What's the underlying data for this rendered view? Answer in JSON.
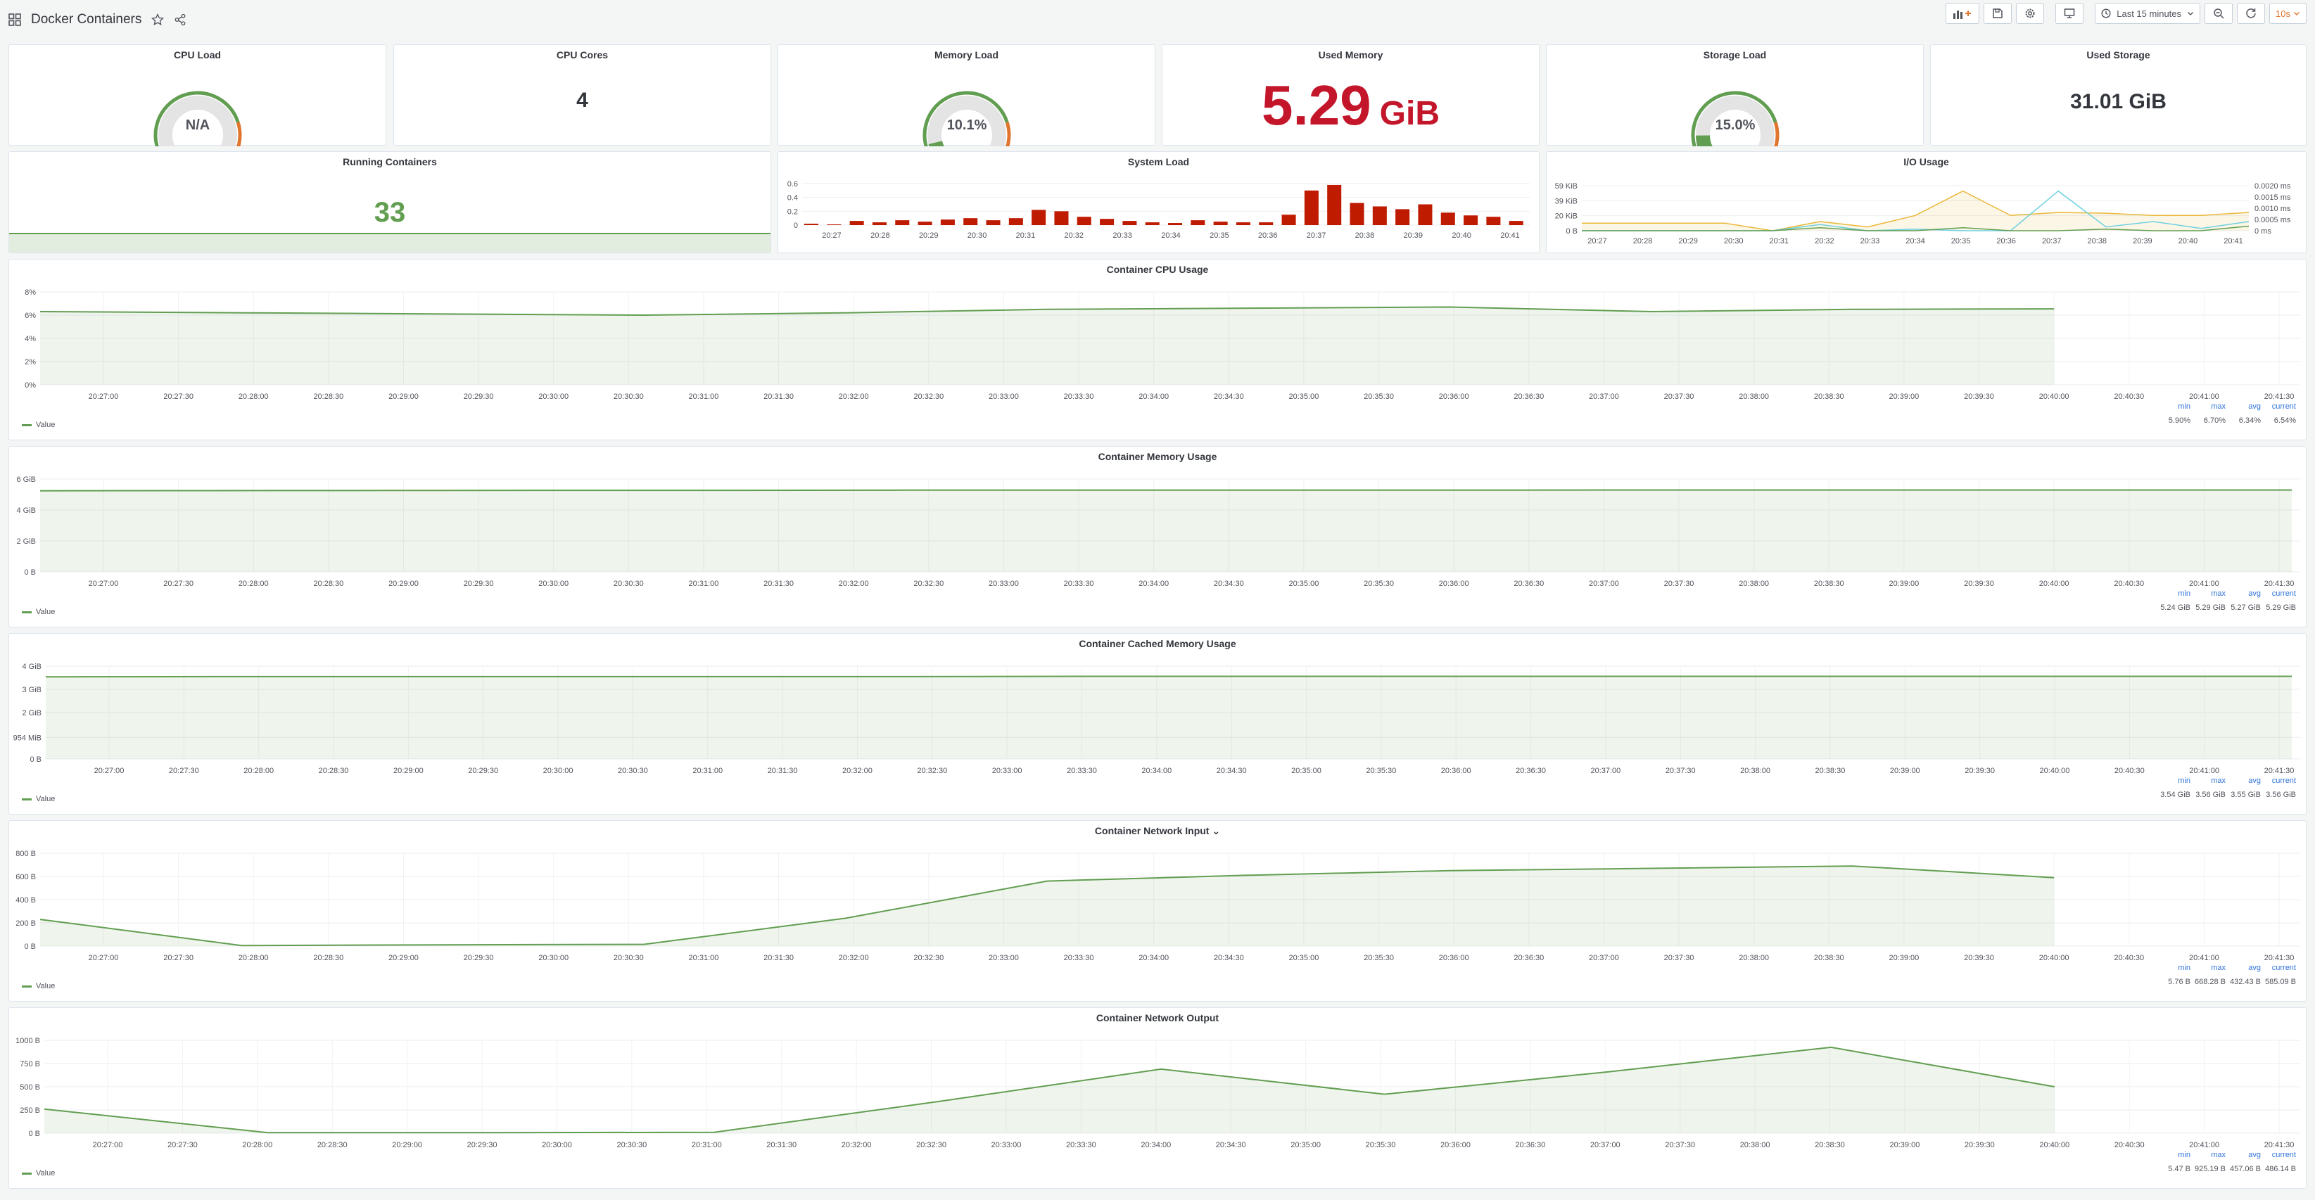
{
  "header": {
    "title": "Docker Containers",
    "time_range": "Last 15 minutes",
    "refresh": "10s"
  },
  "stats": {
    "cpu_load": {
      "title": "CPU Load",
      "value": "N/A",
      "level": 0
    },
    "cpu_cores": {
      "title": "CPU Cores",
      "value": "4"
    },
    "memory_load": {
      "title": "Memory Load",
      "value": "10.1%",
      "level": 0.101
    },
    "used_memory": {
      "title": "Used Memory",
      "value": "5.29",
      "unit": "GiB"
    },
    "storage_load": {
      "title": "Storage Load",
      "value": "15.0%",
      "level": 0.15
    },
    "used_storage": {
      "title": "Used Storage",
      "value": "31.01 GiB"
    },
    "running_containers": {
      "title": "Running Containers",
      "value": "33"
    }
  },
  "colors": {
    "green": "#629e51",
    "red": "#c4162a",
    "orange": "#e0752d",
    "bar": "#bf1b00",
    "cyan": "#6ed0e0",
    "yellow": "#eab839",
    "blue": "#3274d9"
  },
  "system_load": {
    "title": "System Load",
    "yticks": [
      "0.6",
      "0.4",
      "0.2",
      "0"
    ],
    "xticks": [
      "20:27",
      "20:28",
      "20:29",
      "20:30",
      "20:31",
      "20:32",
      "20:33",
      "20:34",
      "20:35",
      "20:36",
      "20:37",
      "20:38",
      "20:39",
      "20:40",
      "20:41"
    ],
    "chart_data": {
      "type": "bar",
      "ylim": [
        0,
        0.6
      ],
      "values": [
        0.02,
        0.01,
        0.06,
        0.04,
        0.07,
        0.05,
        0.08,
        0.1,
        0.07,
        0.1,
        0.22,
        0.2,
        0.12,
        0.09,
        0.06,
        0.04,
        0.03,
        0.07,
        0.05,
        0.04,
        0.04,
        0.15,
        0.5,
        0.58,
        0.32,
        0.27,
        0.23,
        0.3,
        0.18,
        0.14,
        0.12,
        0.06
      ]
    }
  },
  "io_usage": {
    "title": "I/O Usage",
    "yticks_left": [
      "59 KiB",
      "39 KiB",
      "20 KiB",
      "0 B"
    ],
    "yticks_right": [
      "0.0020 ms",
      "0.0015 ms",
      "0.0010 ms",
      "0.0005 ms",
      "0 ms"
    ],
    "xticks": [
      "20:27",
      "20:28",
      "20:29",
      "20:30",
      "20:31",
      "20:32",
      "20:33",
      "20:34",
      "20:35",
      "20:36",
      "20:37",
      "20:38",
      "20:39",
      "20:40",
      "20:41"
    ],
    "chart_data": {
      "type": "line",
      "series": [
        {
          "values": [
            10,
            10,
            10,
            10,
            0,
            12,
            5,
            20,
            52,
            20,
            24,
            23,
            20,
            20,
            24
          ]
        },
        {
          "values": [
            0,
            0,
            0,
            0,
            0,
            8,
            0,
            2,
            0,
            0,
            52,
            5,
            12,
            3,
            12
          ]
        },
        {
          "values": [
            0,
            0,
            0,
            0,
            0,
            4,
            0,
            0,
            4,
            0,
            0,
            2,
            0,
            0,
            6
          ]
        }
      ]
    }
  },
  "timeseries": [
    {
      "title": "Container CPU Usage",
      "yticks": [
        "8%",
        "6%",
        "4%",
        "2%",
        "0%"
      ],
      "ymax": 8,
      "values": [
        6.3,
        6.2,
        6.1,
        6.0,
        6.2,
        6.5,
        6.6,
        6.7,
        6.3,
        6.5,
        6.54
      ],
      "stats": {
        "min": "5.90%",
        "max": "6.70%",
        "avg": "6.34%",
        "current": "6.54%"
      }
    },
    {
      "title": "Container Memory Usage",
      "yticks": [
        "6 GiB",
        "4 GiB",
        "2 GiB",
        "0 B"
      ],
      "ymax": 6,
      "values": [
        5.24,
        5.25,
        5.26,
        5.27,
        5.27,
        5.28,
        5.28,
        5.28,
        5.28,
        5.29,
        5.29,
        5.29,
        5.29,
        5.29
      ],
      "stats": {
        "min": "5.24 GiB",
        "max": "5.29 GiB",
        "avg": "5.27 GiB",
        "current": "5.29 GiB"
      }
    },
    {
      "title": "Container Cached Memory Usage",
      "yticks": [
        "4 GiB",
        "3 GiB",
        "2 GiB",
        "954 MiB",
        "0 B"
      ],
      "ymax": 4,
      "values": [
        3.54,
        3.55,
        3.55,
        3.55,
        3.55,
        3.55,
        3.56,
        3.56,
        3.56,
        3.56,
        3.56,
        3.56,
        3.56,
        3.56
      ],
      "stats": {
        "min": "3.54 GiB",
        "max": "3.56 GiB",
        "avg": "3.55 GiB",
        "current": "3.56 GiB"
      }
    },
    {
      "title": "Container Network Input ⌄",
      "yticks": [
        "800 B",
        "600 B",
        "400 B",
        "200 B",
        "0 B"
      ],
      "ymax": 800,
      "values": [
        230,
        5,
        10,
        15,
        240,
        560,
        610,
        650,
        670,
        690,
        590
      ],
      "stats": {
        "min": "5.76 B",
        "max": "668.28 B",
        "avg": "432.43 B",
        "current": "585.09 B"
      }
    },
    {
      "title": "Container Network Output",
      "yticks": [
        "1000 B",
        "750 B",
        "500 B",
        "250 B",
        "0 B"
      ],
      "ymax": 1000,
      "values": [
        260,
        5,
        5,
        10,
        340,
        690,
        420,
        660,
        925,
        500
      ],
      "stats": {
        "min": "5.47 B",
        "max": "925.19 B",
        "avg": "457.06 B",
        "current": "486.14 B"
      }
    }
  ],
  "time_xticks": [
    "20:27:00",
    "20:27:30",
    "20:28:00",
    "20:28:30",
    "20:29:00",
    "20:29:30",
    "20:30:00",
    "20:30:30",
    "20:31:00",
    "20:31:30",
    "20:32:00",
    "20:32:30",
    "20:33:00",
    "20:33:30",
    "20:34:00",
    "20:34:30",
    "20:35:00",
    "20:35:30",
    "20:36:00",
    "20:36:30",
    "20:37:00",
    "20:37:30",
    "20:38:00",
    "20:38:30",
    "20:39:00",
    "20:39:30",
    "20:40:00",
    "20:40:30",
    "20:41:00",
    "20:41:30"
  ],
  "legend_label": "Value",
  "stat_headers": {
    "min": "min",
    "max": "max",
    "avg": "avg",
    "current": "current"
  }
}
